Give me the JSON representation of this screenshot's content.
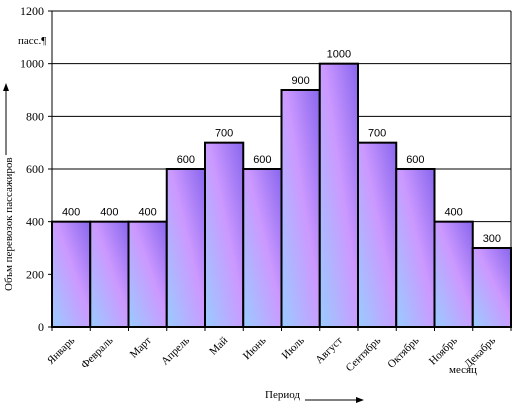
{
  "chart_data": {
    "type": "bar",
    "title": "",
    "xlabel": "Период",
    "ylabel": "Объм перевозок пассажиров",
    "unit_label": "пасс.¶",
    "extra_label": "месяц",
    "categories": [
      "Январь",
      "Февраль",
      "Март",
      "Апрель",
      "Май",
      "Июнь",
      "Июль",
      "Август",
      "Сентябрь",
      "Октябрь",
      "Ноябрь",
      "Декабрь"
    ],
    "values": [
      400,
      400,
      400,
      600,
      700,
      600,
      900,
      1000,
      700,
      600,
      400,
      300
    ],
    "ylim": [
      0,
      1200
    ],
    "yticks": [
      0,
      200,
      400,
      600,
      800,
      1000,
      1200
    ],
    "grid": true,
    "colors": {
      "gradient_start": "#99ccff",
      "gradient_mid": "#cc99ff",
      "gradient_end": "#8866ee",
      "edge": "#000000"
    }
  }
}
